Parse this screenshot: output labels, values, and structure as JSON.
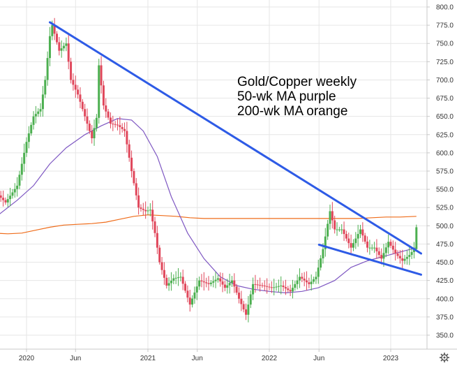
{
  "chart_data": {
    "type": "candlestick",
    "title": "",
    "annotation_lines": [
      "Gold/Copper weekly",
      "50-wk MA purple",
      "200-wk MA orange"
    ],
    "x_axis": {
      "start": "2019-08-19",
      "end": "2023-04-10",
      "tick_labels": [
        {
          "label": "2020",
          "date": "2020-01-06"
        },
        {
          "label": "Jun",
          "date": "2020-06-01"
        },
        {
          "label": "2021",
          "date": "2021-01-04"
        },
        {
          "label": "Jun",
          "date": "2021-06-01"
        },
        {
          "label": "2022",
          "date": "2022-01-03"
        },
        {
          "label": "Jun",
          "date": "2022-06-01"
        },
        {
          "label": "2023",
          "date": "2023-01-02"
        }
      ]
    },
    "y_axis": {
      "min": 325,
      "max": 805,
      "ticks": [
        "800.0",
        "775.0",
        "750.0",
        "725.0",
        "700.0",
        "675.0",
        "650.0",
        "625.0",
        "600.0",
        "575.0",
        "550.0",
        "525.0",
        "500.0",
        "475.0",
        "450.0",
        "425.0",
        "400.0",
        "375.0",
        "350.0"
      ]
    },
    "grid": true,
    "colors": {
      "up": "#4caf50",
      "down": "#e0475b",
      "ma50": "#7e57c2",
      "ma200": "#ef6c1a",
      "trendline": "#2e5be6",
      "grid": "#e6e6e6",
      "axis": "#c8c8c8"
    },
    "price_anchors": [
      [
        "2019-08-19",
        572
      ],
      [
        "2019-09-30",
        548
      ],
      [
        "2019-11-04",
        532
      ],
      [
        "2019-12-09",
        555
      ],
      [
        "2020-01-06",
        615
      ],
      [
        "2020-01-27",
        650
      ],
      [
        "2020-02-17",
        660
      ],
      [
        "2020-03-02",
        700
      ],
      [
        "2020-03-16",
        760
      ],
      [
        "2020-03-23",
        775
      ],
      [
        "2020-04-13",
        740
      ],
      [
        "2020-05-04",
        750
      ],
      [
        "2020-05-18",
        700
      ],
      [
        "2020-06-08",
        680
      ],
      [
        "2020-07-06",
        640
      ],
      [
        "2020-07-20",
        620
      ],
      [
        "2020-08-03",
        648
      ],
      [
        "2020-08-10",
        720
      ],
      [
        "2020-08-24",
        665
      ],
      [
        "2020-09-14",
        640
      ],
      [
        "2020-10-05",
        638
      ],
      [
        "2020-10-26",
        630
      ],
      [
        "2020-11-16",
        575
      ],
      [
        "2020-12-07",
        525
      ],
      [
        "2020-12-28",
        520
      ],
      [
        "2021-01-11",
        522
      ],
      [
        "2021-01-25",
        490
      ],
      [
        "2021-02-08",
        450
      ],
      [
        "2021-03-01",
        418
      ],
      [
        "2021-03-22",
        428
      ],
      [
        "2021-04-12",
        430
      ],
      [
        "2021-05-10",
        392
      ],
      [
        "2021-06-07",
        425
      ],
      [
        "2021-07-05",
        420
      ],
      [
        "2021-08-02",
        428
      ],
      [
        "2021-08-23",
        415
      ],
      [
        "2021-09-13",
        425
      ],
      [
        "2021-10-04",
        400
      ],
      [
        "2021-10-25",
        378
      ],
      [
        "2021-11-15",
        420
      ],
      [
        "2021-12-13",
        418
      ],
      [
        "2022-01-10",
        415
      ],
      [
        "2022-02-07",
        418
      ],
      [
        "2022-03-07",
        410
      ],
      [
        "2022-04-04",
        430
      ],
      [
        "2022-05-02",
        420
      ],
      [
        "2022-05-23",
        430
      ],
      [
        "2022-06-13",
        468
      ],
      [
        "2022-07-04",
        520
      ],
      [
        "2022-07-18",
        495
      ],
      [
        "2022-08-08",
        495
      ],
      [
        "2022-09-05",
        470
      ],
      [
        "2022-10-03",
        495
      ],
      [
        "2022-10-24",
        470
      ],
      [
        "2022-11-14",
        470
      ],
      [
        "2022-12-05",
        455
      ],
      [
        "2022-12-26",
        478
      ],
      [
        "2023-01-16",
        462
      ],
      [
        "2023-02-06",
        452
      ],
      [
        "2023-02-27",
        460
      ],
      [
        "2023-03-13",
        468
      ],
      [
        "2023-03-20",
        498
      ]
    ],
    "ma50_points": [
      [
        "2019-08-19",
        508
      ],
      [
        "2019-10-14",
        515
      ],
      [
        "2019-12-09",
        535
      ],
      [
        "2020-01-27",
        555
      ],
      [
        "2020-03-16",
        585
      ],
      [
        "2020-05-04",
        607
      ],
      [
        "2020-06-29",
        625
      ],
      [
        "2020-08-17",
        637
      ],
      [
        "2020-10-05",
        647
      ],
      [
        "2020-11-16",
        645
      ],
      [
        "2020-12-21",
        630
      ],
      [
        "2021-02-01",
        595
      ],
      [
        "2021-03-15",
        540
      ],
      [
        "2021-05-03",
        490
      ],
      [
        "2021-06-21",
        455
      ],
      [
        "2021-08-09",
        430
      ],
      [
        "2021-09-27",
        418
      ],
      [
        "2021-11-15",
        413
      ],
      [
        "2022-01-03",
        410
      ],
      [
        "2022-02-21",
        408
      ],
      [
        "2022-04-11",
        410
      ],
      [
        "2022-05-30",
        415
      ],
      [
        "2022-07-18",
        425
      ],
      [
        "2022-09-05",
        443
      ],
      [
        "2022-10-24",
        452
      ],
      [
        "2022-12-12",
        458
      ],
      [
        "2023-01-30",
        464
      ],
      [
        "2023-03-20",
        470
      ]
    ],
    "ma200_points": [
      [
        "2019-08-19",
        490
      ],
      [
        "2019-09-30",
        490
      ],
      [
        "2019-11-11",
        489
      ],
      [
        "2019-12-23",
        490
      ],
      [
        "2020-02-03",
        494
      ],
      [
        "2020-03-16",
        498
      ],
      [
        "2020-04-27",
        501
      ],
      [
        "2020-06-08",
        502
      ],
      [
        "2020-07-20",
        503
      ],
      [
        "2020-08-31",
        505
      ],
      [
        "2020-10-12",
        509
      ],
      [
        "2020-11-23",
        513
      ],
      [
        "2021-01-04",
        515
      ],
      [
        "2021-02-15",
        514
      ],
      [
        "2021-03-29",
        513
      ],
      [
        "2021-05-10",
        511
      ],
      [
        "2021-06-21",
        510
      ],
      [
        "2021-08-02",
        510
      ],
      [
        "2021-09-13",
        510
      ],
      [
        "2021-10-25",
        510
      ],
      [
        "2021-12-06",
        510
      ],
      [
        "2022-01-17",
        510
      ],
      [
        "2022-02-28",
        510
      ],
      [
        "2022-04-11",
        510
      ],
      [
        "2022-05-23",
        510
      ],
      [
        "2022-07-04",
        510
      ],
      [
        "2022-08-15",
        510
      ],
      [
        "2022-09-26",
        510
      ],
      [
        "2022-11-07",
        511
      ],
      [
        "2022-12-19",
        512
      ],
      [
        "2023-01-30",
        512
      ],
      [
        "2023-03-20",
        513
      ]
    ],
    "trendlines": [
      {
        "name": "upper-trendline",
        "from": [
          "2020-03-16",
          779
        ],
        "to": [
          "2023-04-03",
          462
        ]
      },
      {
        "name": "lower-trendline",
        "from": [
          "2022-06-01",
          474
        ],
        "to": [
          "2023-04-03",
          433
        ]
      }
    ]
  }
}
